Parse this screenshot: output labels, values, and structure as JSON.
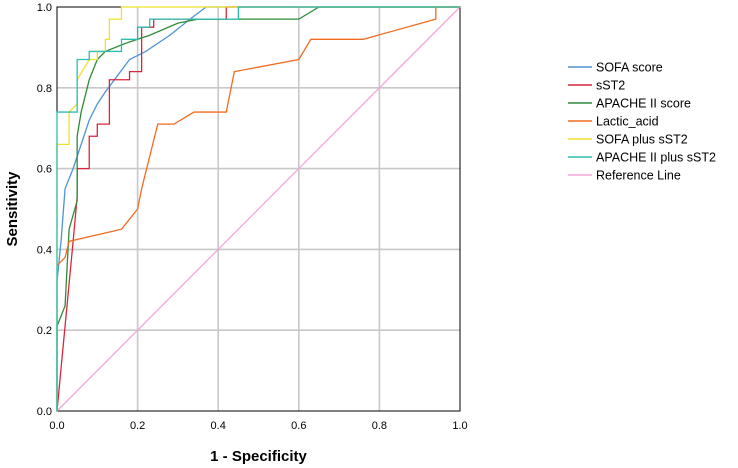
{
  "chart_data": {
    "type": "line",
    "xlabel": "1 - Specificity",
    "ylabel": "Sensitivity",
    "xlim": [
      0,
      1
    ],
    "ylim": [
      0,
      1
    ],
    "x_ticks": [
      "0.0",
      "0.2",
      "0.4",
      "0.6",
      "0.8",
      "1.0"
    ],
    "y_ticks": [
      "0.0",
      "0.2",
      "0.4",
      "0.6",
      "0.8",
      "1.0"
    ],
    "grid": true,
    "legend_position": "right",
    "series": [
      {
        "name": "SOFA score",
        "color": "#4f94d4",
        "points": [
          [
            0,
            0
          ],
          [
            0,
            0.32
          ],
          [
            0.01,
            0.42
          ],
          [
            0.02,
            0.55
          ],
          [
            0.04,
            0.6
          ],
          [
            0.06,
            0.66
          ],
          [
            0.08,
            0.72
          ],
          [
            0.1,
            0.76
          ],
          [
            0.12,
            0.79
          ],
          [
            0.15,
            0.83
          ],
          [
            0.18,
            0.87
          ],
          [
            0.22,
            0.89
          ],
          [
            0.28,
            0.93
          ],
          [
            0.33,
            0.97
          ],
          [
            0.37,
            1.0
          ],
          [
            1,
            1
          ]
        ]
      },
      {
        "name": "sST2",
        "color": "#d7263d",
        "points": [
          [
            0,
            0
          ],
          [
            0.04,
            0.42
          ],
          [
            0.05,
            0.53
          ],
          [
            0.05,
            0.6
          ],
          [
            0.08,
            0.6
          ],
          [
            0.08,
            0.68
          ],
          [
            0.1,
            0.68
          ],
          [
            0.1,
            0.71
          ],
          [
            0.13,
            0.71
          ],
          [
            0.13,
            0.82
          ],
          [
            0.18,
            0.82
          ],
          [
            0.18,
            0.84
          ],
          [
            0.21,
            0.84
          ],
          [
            0.21,
            0.95
          ],
          [
            0.24,
            0.95
          ],
          [
            0.24,
            0.97
          ],
          [
            0.42,
            0.97
          ],
          [
            0.42,
            1.0
          ],
          [
            1,
            1
          ]
        ]
      },
      {
        "name": "APACHE II score",
        "color": "#2e8b3a",
        "points": [
          [
            0,
            0
          ],
          [
            0,
            0.21
          ],
          [
            0.02,
            0.26
          ],
          [
            0.03,
            0.45
          ],
          [
            0.05,
            0.52
          ],
          [
            0.05,
            0.68
          ],
          [
            0.06,
            0.74
          ],
          [
            0.08,
            0.82
          ],
          [
            0.1,
            0.87
          ],
          [
            0.12,
            0.89
          ],
          [
            0.17,
            0.91
          ],
          [
            0.23,
            0.93
          ],
          [
            0.3,
            0.96
          ],
          [
            0.35,
            0.97
          ],
          [
            0.6,
            0.97
          ],
          [
            0.65,
            1.0
          ],
          [
            1,
            1
          ]
        ]
      },
      {
        "name": "Lactic_acid",
        "color": "#f26b21",
        "points": [
          [
            0,
            0.36
          ],
          [
            0.02,
            0.38
          ],
          [
            0.03,
            0.42
          ],
          [
            0.16,
            0.45
          ],
          [
            0.2,
            0.5
          ],
          [
            0.21,
            0.55
          ],
          [
            0.25,
            0.71
          ],
          [
            0.29,
            0.71
          ],
          [
            0.34,
            0.74
          ],
          [
            0.42,
            0.74
          ],
          [
            0.44,
            0.84
          ],
          [
            0.6,
            0.87
          ],
          [
            0.63,
            0.92
          ],
          [
            0.76,
            0.92
          ],
          [
            0.94,
            0.97
          ],
          [
            0.94,
            1.0
          ],
          [
            1,
            1
          ]
        ]
      },
      {
        "name": "SOFA plus sST2",
        "color": "#f0e12a",
        "points": [
          [
            0,
            0
          ],
          [
            0,
            0.66
          ],
          [
            0.03,
            0.66
          ],
          [
            0.03,
            0.74
          ],
          [
            0.05,
            0.76
          ],
          [
            0.05,
            0.82
          ],
          [
            0.08,
            0.87
          ],
          [
            0.1,
            0.87
          ],
          [
            0.1,
            0.89
          ],
          [
            0.12,
            0.89
          ],
          [
            0.12,
            0.92
          ],
          [
            0.13,
            0.92
          ],
          [
            0.13,
            0.97
          ],
          [
            0.16,
            0.97
          ],
          [
            0.16,
            1.0
          ],
          [
            1,
            1
          ]
        ]
      },
      {
        "name": "APACHE II plus sST2",
        "color": "#2bbfb0",
        "points": [
          [
            0,
            0
          ],
          [
            0,
            0.74
          ],
          [
            0.05,
            0.74
          ],
          [
            0.05,
            0.87
          ],
          [
            0.08,
            0.87
          ],
          [
            0.08,
            0.89
          ],
          [
            0.16,
            0.89
          ],
          [
            0.16,
            0.92
          ],
          [
            0.2,
            0.92
          ],
          [
            0.2,
            0.95
          ],
          [
            0.23,
            0.95
          ],
          [
            0.23,
            0.97
          ],
          [
            0.45,
            0.97
          ],
          [
            0.45,
            1.0
          ],
          [
            1,
            1
          ]
        ]
      },
      {
        "name": "Reference Line",
        "color": "#f2a7d8",
        "points": [
          [
            0,
            0
          ],
          [
            1,
            1
          ]
        ]
      }
    ]
  }
}
